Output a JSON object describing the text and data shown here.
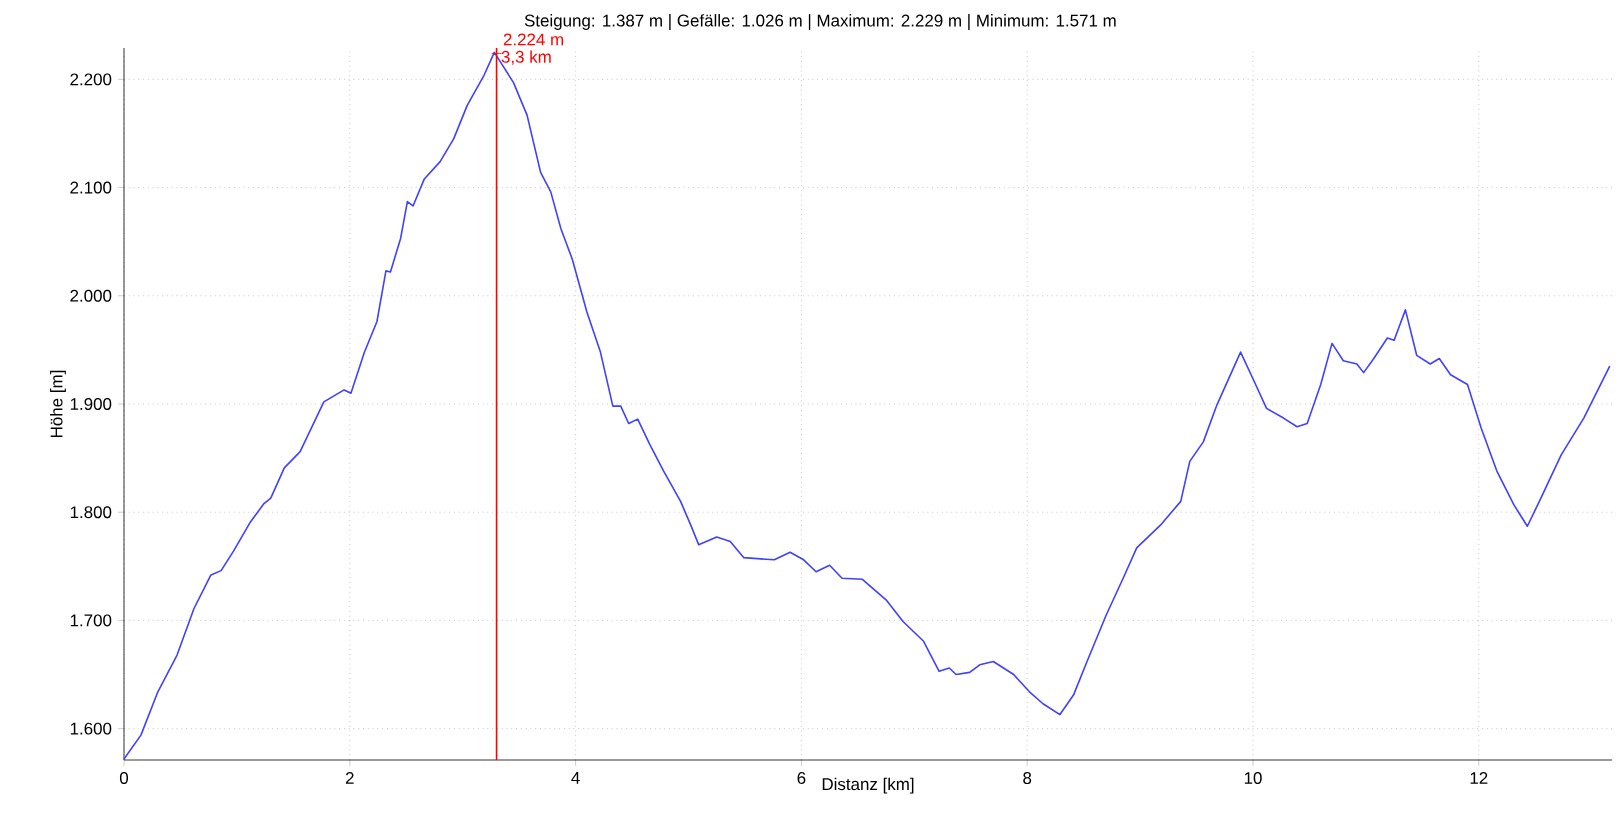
{
  "chart_data": {
    "type": "line",
    "title": "Steigung: 1.387 m | Gefälle: 1.026 m | Maximum: 2.229 m | Minimum: 1.571 m",
    "xlabel": "Distanz [km]",
    "ylabel": "Höhe [m]",
    "xlim": [
      0,
      13.18
    ],
    "ylim": [
      1571,
      2229
    ],
    "xticks": [
      0,
      2,
      4,
      6,
      8,
      10,
      12
    ],
    "yticks": [
      {
        "value": 1600,
        "label": "1.600"
      },
      {
        "value": 1700,
        "label": "1.700"
      },
      {
        "value": 1800,
        "label": "1.800"
      },
      {
        "value": 1900,
        "label": "1.900"
      },
      {
        "value": 2000,
        "label": "2.000"
      },
      {
        "value": 2100,
        "label": "2.100"
      },
      {
        "value": 2200,
        "label": "2.200"
      }
    ],
    "grid": true,
    "marker": "none",
    "line_style": "solid",
    "series": [
      {
        "color": "#4040ff",
        "x": [
          0,
          0.15,
          0.3,
          0.47,
          0.62,
          0.77,
          0.86,
          0.97,
          1.12,
          1.24,
          1.3,
          1.42,
          1.56,
          1.77,
          1.95,
          2.01,
          2.13,
          2.24,
          2.32,
          2.36,
          2.45,
          2.51,
          2.56,
          2.66,
          2.8,
          2.92,
          3.04,
          3.19,
          3.28,
          3.45,
          3.57,
          3.69,
          3.78,
          3.87,
          3.97,
          4.1,
          4.22,
          4.33,
          4.4,
          4.47,
          4.55,
          4.66,
          4.78,
          4.93,
          5.02,
          5.09,
          5.25,
          5.37,
          5.49,
          5.76,
          5.9,
          6.02,
          6.13,
          6.25,
          6.36,
          6.54,
          6.75,
          6.9,
          7.08,
          7.22,
          7.31,
          7.37,
          7.49,
          7.58,
          7.7,
          7.88,
          8.02,
          8.14,
          8.29,
          8.41,
          8.53,
          8.7,
          8.85,
          8.97,
          9.18,
          9.36,
          9.44,
          9.56,
          9.68,
          9.89,
          10.01,
          10.12,
          10.27,
          10.39,
          10.48,
          10.6,
          10.7,
          10.8,
          10.92,
          10.98,
          11.07,
          11.19,
          11.25,
          11.35,
          11.45,
          11.57,
          11.65,
          11.75,
          11.9,
          12.02,
          12.16,
          12.31,
          12.43,
          12.55,
          12.73,
          12.93,
          13.16
        ],
        "values": [
          1572,
          1594,
          1634,
          1668,
          1711,
          1742,
          1746,
          1764,
          1791,
          1808,
          1813,
          1841,
          1856,
          1902,
          1913,
          1910,
          1948,
          1976,
          2023,
          2022,
          2053,
          2087,
          2083,
          2108,
          2124,
          2145,
          2176,
          2204,
          2225,
          2197,
          2167,
          2114,
          2096,
          2062,
          2034,
          1985,
          1948,
          1898,
          1898,
          1882,
          1886,
          1862,
          1838,
          1810,
          1788,
          1770,
          1777,
          1773,
          1758,
          1756,
          1763,
          1756,
          1745,
          1751,
          1739,
          1738,
          1719,
          1699,
          1681,
          1653,
          1656,
          1650,
          1652,
          1659,
          1662,
          1650,
          1634,
          1623,
          1613,
          1631,
          1662,
          1705,
          1739,
          1767,
          1788,
          1810,
          1847,
          1865,
          1899,
          1948,
          1921,
          1896,
          1887,
          1879,
          1882,
          1918,
          1956,
          1940,
          1937,
          1929,
          1942,
          1961,
          1959,
          1987,
          1945,
          1937,
          1942,
          1927,
          1918,
          1878,
          1838,
          1807,
          1787,
          1813,
          1853,
          1887,
          1935
        ]
      }
    ],
    "ref_lines": [
      {
        "axis": "x",
        "value": 3.3,
        "label": "3,3 km",
        "color": "#ff0000"
      }
    ],
    "annotations": [
      {
        "text": "2.224 m",
        "x": 3.3,
        "y": 2224
      }
    ]
  }
}
